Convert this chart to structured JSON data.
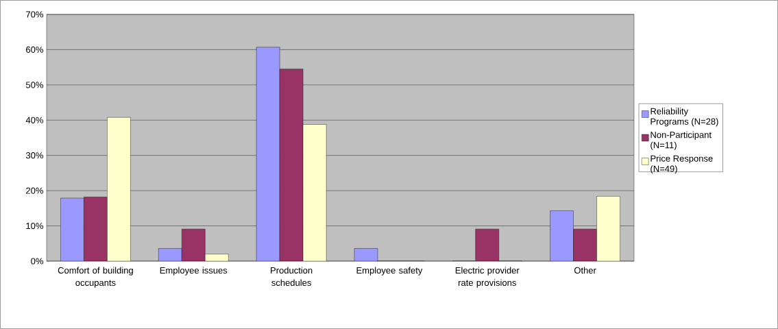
{
  "chart_data": {
    "type": "bar",
    "categories": [
      "Comfort of building occupants",
      "Employee issues",
      "Production schedules",
      "Employee safety",
      "Electric provider rate provisions",
      "Other"
    ],
    "series": [
      {
        "name": "Reliability Programs (N=28)",
        "color": "#9999ff",
        "values": [
          17.9,
          3.6,
          60.7,
          3.6,
          0,
          14.3
        ]
      },
      {
        "name": "Non-Participant (N=11)",
        "color": "#993366",
        "values": [
          18.2,
          9.1,
          54.5,
          0,
          9.1,
          9.1
        ]
      },
      {
        "name": "Price Response (N=49)",
        "color": "#ffffcc",
        "values": [
          40.8,
          2.0,
          38.8,
          0,
          0,
          18.4
        ]
      }
    ],
    "ylim": [
      0,
      70
    ],
    "yticks": [
      {
        "value": 0,
        "label": "0%"
      },
      {
        "value": 10,
        "label": "10%"
      },
      {
        "value": 20,
        "label": "20%"
      },
      {
        "value": 30,
        "label": "30%"
      },
      {
        "value": 40,
        "label": "40%"
      },
      {
        "value": 50,
        "label": "50%"
      },
      {
        "value": 60,
        "label": "60%"
      },
      {
        "value": 70,
        "label": "70%"
      }
    ],
    "grid": "y",
    "legend": "right"
  }
}
